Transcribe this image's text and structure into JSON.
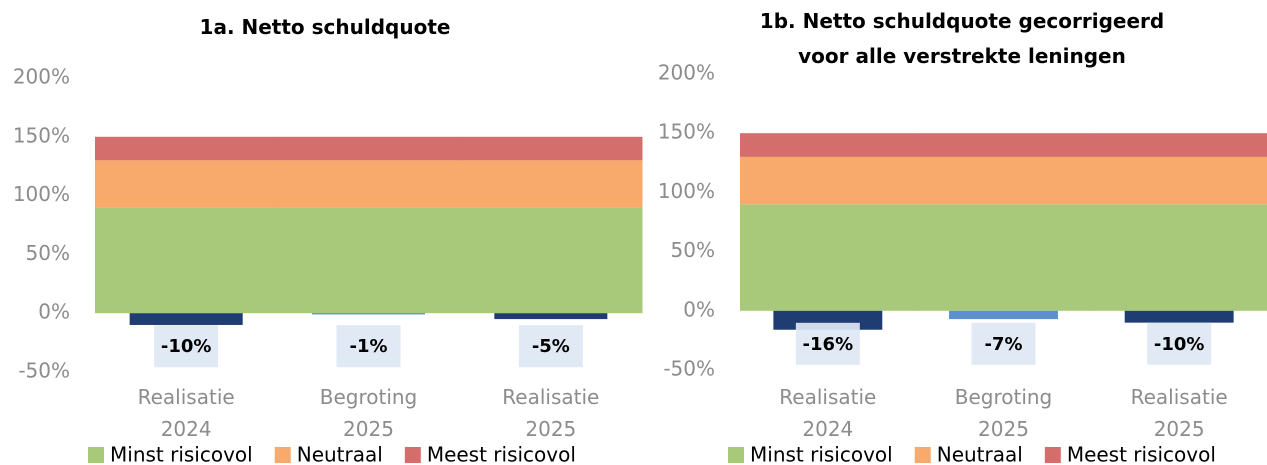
{
  "chart_data": [
    {
      "type": "bar",
      "title": "1a. Netto schuldquote",
      "categories": [
        "Realisatie 2024",
        "Begroting 2025",
        "Realisatie 2025"
      ],
      "values": [
        -10,
        -1,
        -5
      ],
      "value_labels": [
        "-10%",
        "-1%",
        "-5%"
      ],
      "colors": [
        "#1f3d73",
        "#4f7fc0",
        "#1f3d73"
      ],
      "series": [
        {
          "name": "Minst risicovol",
          "color": "#a9c97a",
          "values": [
            90,
            90,
            90
          ]
        },
        {
          "name": "Neutraal",
          "color": "#f7aa6b",
          "values": [
            40,
            40,
            40
          ]
        },
        {
          "name": "Meest risicovol",
          "color": "#d46e6c",
          "values": [
            20,
            20,
            20
          ]
        }
      ],
      "ylim": [
        -50,
        200
      ],
      "yticks": [
        {
          "value": -50,
          "label": "-50%"
        },
        {
          "value": 0,
          "label": "0%"
        },
        {
          "value": 50,
          "label": "50%"
        },
        {
          "value": 100,
          "label": "100%"
        },
        {
          "value": 150,
          "label": "150%"
        },
        {
          "value": 200,
          "label": "200%"
        }
      ],
      "grid": false
    },
    {
      "type": "bar",
      "title": "1b. Netto schuldquote gecorrigeerd voor alle verstrekte leningen",
      "categories": [
        "Realisatie 2024",
        "Begroting 2025",
        "Realisatie 2025"
      ],
      "values": [
        -16,
        -7,
        -10
      ],
      "value_labels": [
        "-16%",
        "-7%",
        "-10%"
      ],
      "colors": [
        "#1f3d73",
        "#5b8fd0",
        "#1f3d73"
      ],
      "series": [
        {
          "name": "Minst risicovol",
          "color": "#a9c97a",
          "values": [
            90,
            90,
            90
          ]
        },
        {
          "name": "Neutraal",
          "color": "#f7aa6b",
          "values": [
            40,
            40,
            40
          ]
        },
        {
          "name": "Meest risicovol",
          "color": "#d46e6c",
          "values": [
            20,
            20,
            20
          ]
        }
      ],
      "ylim": [
        -50,
        200
      ],
      "yticks": [
        {
          "value": -50,
          "label": "-50%"
        },
        {
          "value": 0,
          "label": "0%"
        },
        {
          "value": 50,
          "label": "50%"
        },
        {
          "value": 100,
          "label": "100%"
        },
        {
          "value": 150,
          "label": "150%"
        },
        {
          "value": 200,
          "label": "200%"
        }
      ],
      "grid": false
    }
  ]
}
